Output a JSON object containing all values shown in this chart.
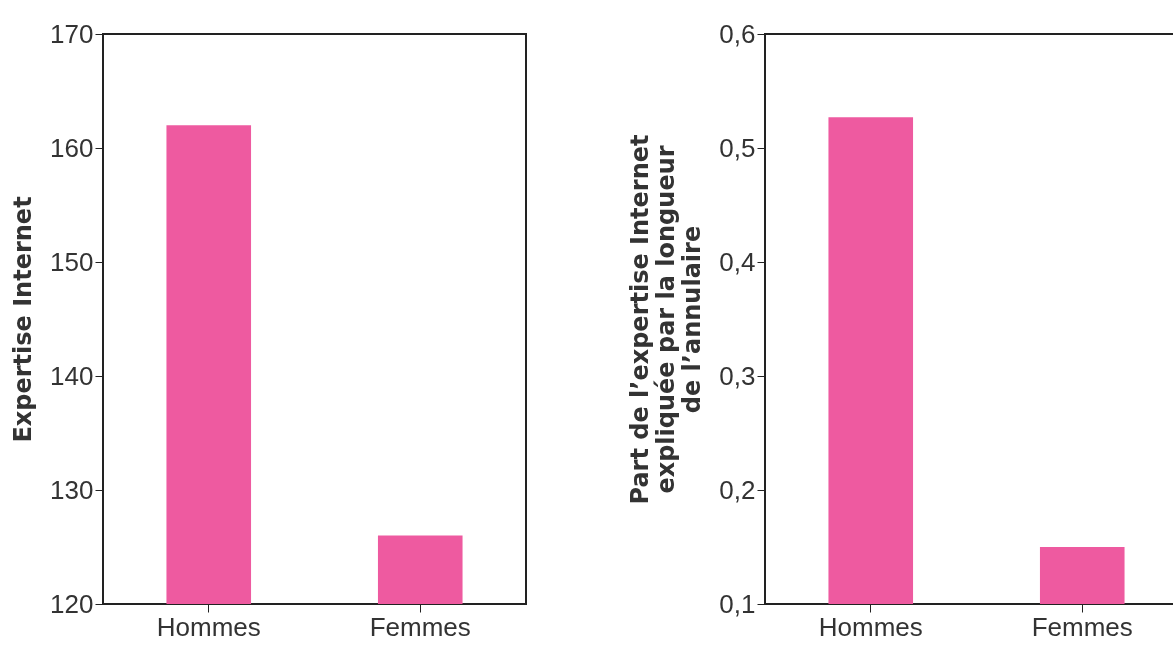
{
  "chart_data": [
    {
      "type": "bar",
      "categories": [
        "Hommes",
        "Femmes"
      ],
      "values": [
        162,
        126
      ],
      "color": "#ee5aa0",
      "ylabel": "Expertise Internet",
      "ylim": [
        120,
        170
      ],
      "yticks": [
        120,
        130,
        140,
        150,
        160,
        170
      ],
      "grid": false
    },
    {
      "type": "bar",
      "categories": [
        "Hommes",
        "Femmes"
      ],
      "values": [
        0.527,
        0.15
      ],
      "color": "#ee5aa0",
      "ylabel": "Part de l’expertise Internet\nexpliquée par la longueur\nde l’annulaire",
      "ylim": [
        0.1,
        0.6
      ],
      "yticks": [
        {
          "value": 0.1,
          "label": "0,1"
        },
        {
          "value": 0.2,
          "label": "0,2"
        },
        {
          "value": 0.3,
          "label": "0,3"
        },
        {
          "value": 0.4,
          "label": "0,4"
        },
        {
          "value": 0.5,
          "label": "0,5"
        },
        {
          "value": 0.6,
          "label": "0,6"
        }
      ],
      "grid": false
    }
  ]
}
